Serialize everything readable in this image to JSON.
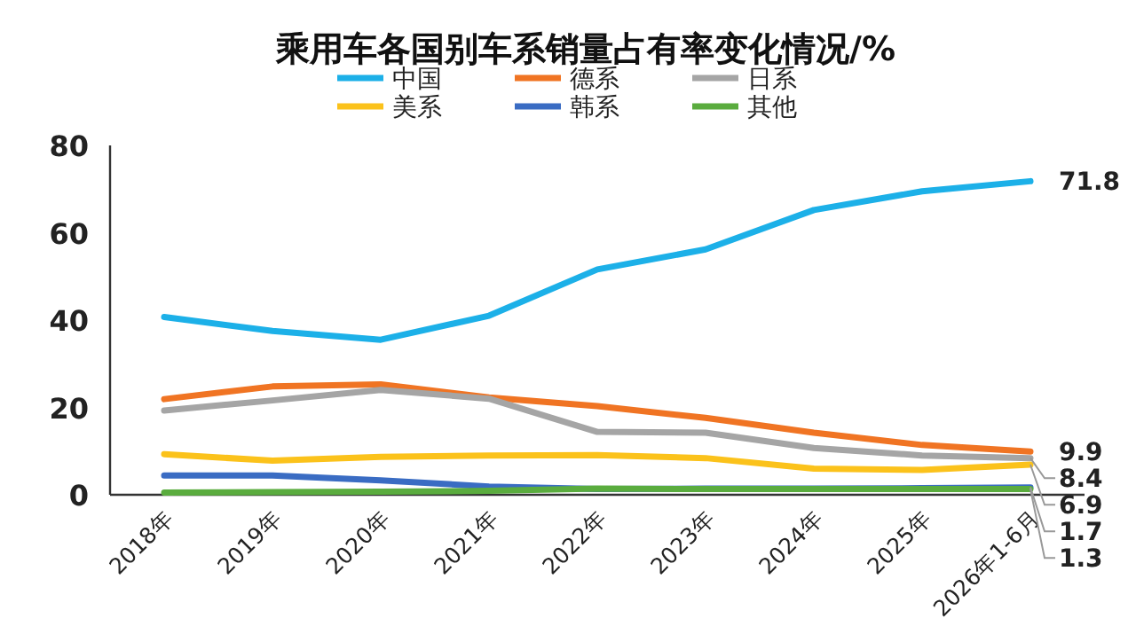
{
  "chart_data": {
    "type": "line",
    "title": "乘用车各国别车系销量占有率变化情况/%",
    "categories": [
      "2018年",
      "2019年",
      "2020年",
      "2021年",
      "2022年",
      "2023年",
      "2024年",
      "2025年",
      "2026年1-6月"
    ],
    "series": [
      {
        "name": "中国",
        "color": "#1cb0e8",
        "values": [
          40.7,
          37.5,
          35.5,
          41,
          51.6,
          56.2,
          65.2,
          69.5,
          71.8
        ],
        "value_labels": [
          null,
          null,
          null,
          null,
          null,
          null,
          null,
          null,
          "71.8"
        ]
      },
      {
        "name": "德系",
        "color": "#f07423",
        "values": [
          21.9,
          24.8,
          25.3,
          22.3,
          20.3,
          17.6,
          14.2,
          11.4,
          9.9
        ],
        "value_labels": [
          null,
          null,
          null,
          null,
          null,
          null,
          null,
          null,
          "9.9"
        ]
      },
      {
        "name": "日系",
        "color": "#a5a5a5",
        "values": [
          19.3,
          21.6,
          24,
          22,
          14.4,
          14.2,
          10.7,
          9,
          8.4
        ],
        "value_labels": [
          null,
          null,
          null,
          null,
          null,
          null,
          null,
          null,
          "8.4"
        ]
      },
      {
        "name": "美系",
        "color": "#fbc21b",
        "values": [
          9.3,
          7.8,
          8.7,
          9,
          9.1,
          8.4,
          6,
          5.7,
          6.9
        ],
        "value_labels": [
          null,
          null,
          null,
          null,
          null,
          null,
          null,
          null,
          "6.9"
        ]
      },
      {
        "name": "韩系",
        "color": "#3a6cc3",
        "values": [
          4.4,
          4.4,
          3.3,
          1.9,
          1.3,
          1.4,
          1.4,
          1.5,
          1.7
        ],
        "value_labels": [
          null,
          null,
          null,
          null,
          null,
          null,
          null,
          null,
          "1.7"
        ]
      },
      {
        "name": "其他",
        "color": "#5aac3e",
        "values": [
          0.5,
          0.6,
          0.7,
          0.9,
          1.4,
          1.3,
          1.3,
          1.3,
          1.3
        ],
        "value_labels": [
          null,
          null,
          null,
          null,
          null,
          null,
          null,
          null,
          "1.3"
        ]
      }
    ],
    "ylim": [
      0,
      80
    ],
    "yticks": [
      0,
      20,
      40,
      60,
      80
    ],
    "grid": false,
    "legend": "top",
    "marker": "none",
    "line_style": "solid"
  }
}
